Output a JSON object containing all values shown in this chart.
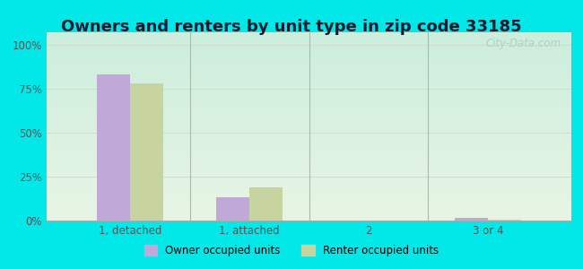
{
  "title": "Owners and renters by unit type in zip code 33185",
  "categories": [
    "1, detached",
    "1, attached",
    "2",
    "3 or 4"
  ],
  "owner_values": [
    83,
    13,
    0,
    1.5
  ],
  "renter_values": [
    78,
    19,
    0,
    0.5
  ],
  "owner_color": "#c0a8d8",
  "renter_color": "#c8d4a0",
  "bg_top_color": "#e8f5e5",
  "bg_bottom_color": "#d4f0e8",
  "outer_background": "#00e8e8",
  "yticks": [
    0,
    25,
    50,
    75,
    100
  ],
  "ylim": [
    0,
    107
  ],
  "legend_owner": "Owner occupied units",
  "legend_renter": "Renter occupied units",
  "bar_width": 0.28,
  "title_fontsize": 13,
  "tick_fontsize": 8.5,
  "watermark": "City-Data.com"
}
